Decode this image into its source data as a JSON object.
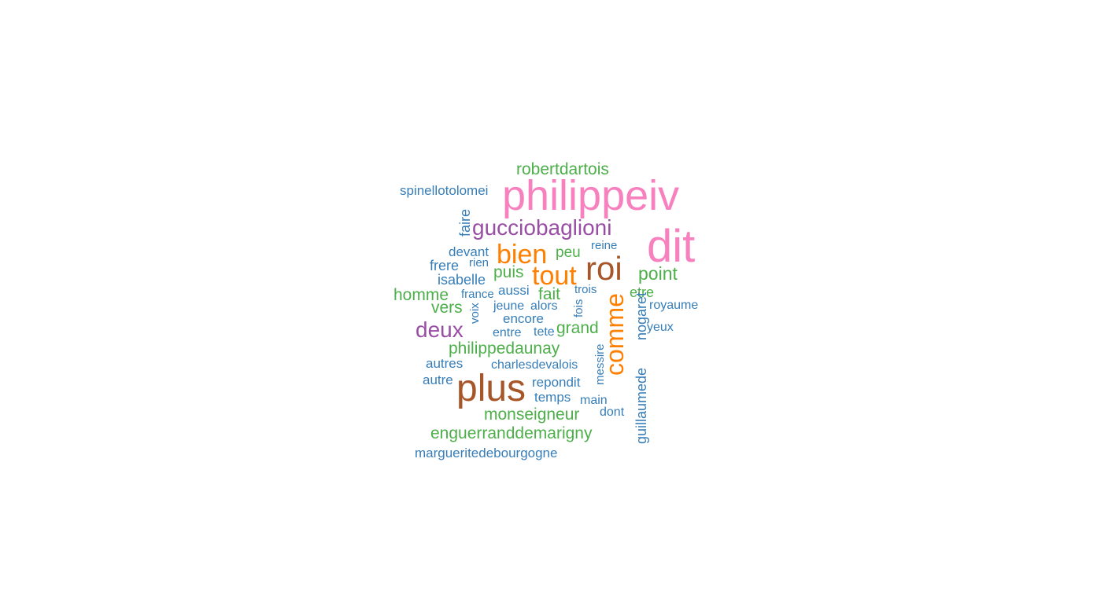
{
  "chart_data": {
    "type": "wordcloud",
    "title": "",
    "colors": {
      "pink": "#f781bf",
      "brown": "#a65628",
      "orange": "#ff7f00",
      "purple": "#984ea3",
      "green": "#4daf4a",
      "blue": "#377eb8"
    },
    "words": [
      {
        "text": "philippeiv",
        "color": "pink",
        "weight": 10,
        "rotate": 0
      },
      {
        "text": "dit",
        "color": "pink",
        "weight": 10,
        "rotate": 0
      },
      {
        "text": "plus",
        "color": "brown",
        "weight": 8,
        "rotate": 0
      },
      {
        "text": "roi",
        "color": "brown",
        "weight": 8,
        "rotate": 0
      },
      {
        "text": "bien",
        "color": "orange",
        "weight": 6,
        "rotate": 0
      },
      {
        "text": "tout",
        "color": "orange",
        "weight": 6,
        "rotate": 0
      },
      {
        "text": "comme",
        "color": "orange",
        "weight": 6,
        "rotate": 270
      },
      {
        "text": "gucciobaglioni",
        "color": "purple",
        "weight": 5,
        "rotate": 0
      },
      {
        "text": "deux",
        "color": "purple",
        "weight": 5,
        "rotate": 0
      },
      {
        "text": "robertdartois",
        "color": "green",
        "weight": 4,
        "rotate": 0
      },
      {
        "text": "point",
        "color": "green",
        "weight": 4,
        "rotate": 0
      },
      {
        "text": "puis",
        "color": "green",
        "weight": 4,
        "rotate": 0
      },
      {
        "text": "homme",
        "color": "green",
        "weight": 4,
        "rotate": 0
      },
      {
        "text": "vers",
        "color": "green",
        "weight": 4,
        "rotate": 0
      },
      {
        "text": "fait",
        "color": "green",
        "weight": 4,
        "rotate": 0
      },
      {
        "text": "peu",
        "color": "green",
        "weight": 3,
        "rotate": 0
      },
      {
        "text": "etre",
        "color": "green",
        "weight": 3,
        "rotate": 0
      },
      {
        "text": "grand",
        "color": "green",
        "weight": 4,
        "rotate": 0
      },
      {
        "text": "philippedaunay",
        "color": "green",
        "weight": 4,
        "rotate": 0
      },
      {
        "text": "monseigneur",
        "color": "green",
        "weight": 4,
        "rotate": 0
      },
      {
        "text": "enguerranddemarigny",
        "color": "green",
        "weight": 4,
        "rotate": 0
      },
      {
        "text": "spinellotolomei",
        "color": "blue",
        "weight": 3,
        "rotate": 0
      },
      {
        "text": "faire",
        "color": "blue",
        "weight": 3,
        "rotate": 270
      },
      {
        "text": "devant",
        "color": "blue",
        "weight": 3,
        "rotate": 0
      },
      {
        "text": "rien",
        "color": "blue",
        "weight": 2,
        "rotate": 0
      },
      {
        "text": "frere",
        "color": "blue",
        "weight": 3,
        "rotate": 0
      },
      {
        "text": "isabelle",
        "color": "blue",
        "weight": 3,
        "rotate": 0
      },
      {
        "text": "france",
        "color": "blue",
        "weight": 2,
        "rotate": 0
      },
      {
        "text": "aussi",
        "color": "blue",
        "weight": 3,
        "rotate": 0
      },
      {
        "text": "jeune",
        "color": "blue",
        "weight": 2,
        "rotate": 0
      },
      {
        "text": "alors",
        "color": "blue",
        "weight": 2,
        "rotate": 0
      },
      {
        "text": "trois",
        "color": "blue",
        "weight": 2,
        "rotate": 0
      },
      {
        "text": "fois",
        "color": "blue",
        "weight": 2,
        "rotate": 270
      },
      {
        "text": "reine",
        "color": "blue",
        "weight": 2,
        "rotate": 0
      },
      {
        "text": "voix",
        "color": "blue",
        "weight": 2,
        "rotate": 270
      },
      {
        "text": "encore",
        "color": "blue",
        "weight": 3,
        "rotate": 0
      },
      {
        "text": "entre",
        "color": "blue",
        "weight": 2,
        "rotate": 0
      },
      {
        "text": "tete",
        "color": "blue",
        "weight": 2,
        "rotate": 0
      },
      {
        "text": "royaume",
        "color": "blue",
        "weight": 2,
        "rotate": 0
      },
      {
        "text": "yeux",
        "color": "blue",
        "weight": 2,
        "rotate": 0
      },
      {
        "text": "nogaret",
        "color": "blue",
        "weight": 3,
        "rotate": 270
      },
      {
        "text": "guillaumede",
        "color": "blue",
        "weight": 3,
        "rotate": 270
      },
      {
        "text": "messire",
        "color": "blue",
        "weight": 2,
        "rotate": 270
      },
      {
        "text": "autres",
        "color": "blue",
        "weight": 3,
        "rotate": 0
      },
      {
        "text": "charlesdevalois",
        "color": "blue",
        "weight": 3,
        "rotate": 0
      },
      {
        "text": "autre",
        "color": "blue",
        "weight": 3,
        "rotate": 0
      },
      {
        "text": "repondit",
        "color": "blue",
        "weight": 3,
        "rotate": 0
      },
      {
        "text": "temps",
        "color": "blue",
        "weight": 3,
        "rotate": 0
      },
      {
        "text": "main",
        "color": "blue",
        "weight": 2,
        "rotate": 0
      },
      {
        "text": "dont",
        "color": "blue",
        "weight": 2,
        "rotate": 0
      },
      {
        "text": "margueritedebourgogne",
        "color": "blue",
        "weight": 3,
        "rotate": 0
      }
    ]
  }
}
